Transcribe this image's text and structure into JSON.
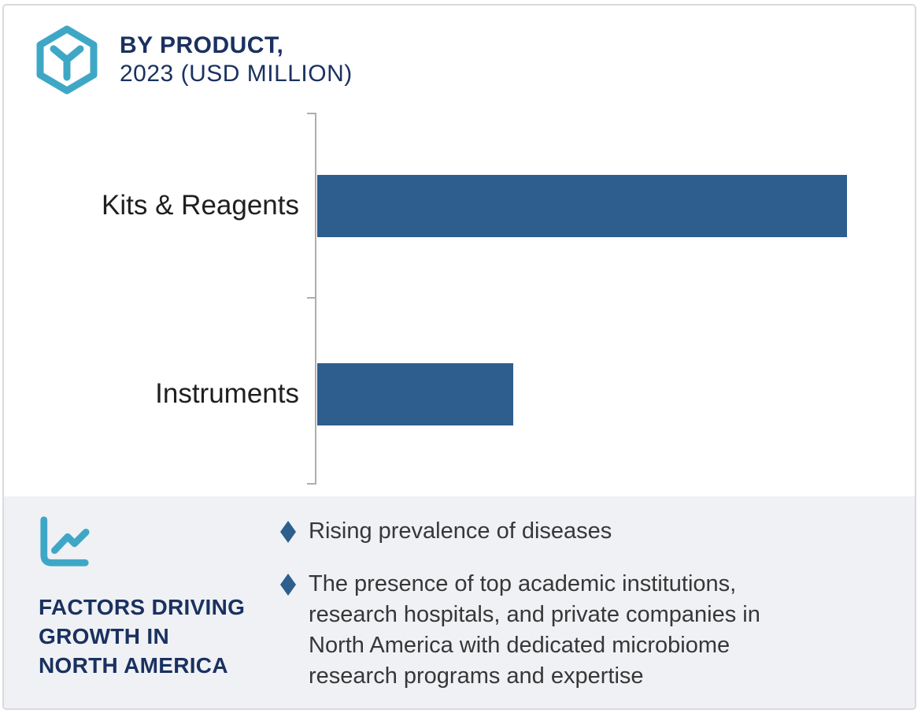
{
  "header": {
    "title_line1": "BY PRODUCT,",
    "title_line2": "2023 (USD MILLION)",
    "brand_icon": "hexagon-y-logo-icon"
  },
  "chart_data": {
    "type": "bar",
    "orientation": "horizontal",
    "title": "BY PRODUCT, 2023 (USD MILLION)",
    "categories": [
      "Kits & Reagents",
      "Instruments"
    ],
    "values_pct_of_max": [
      100,
      37
    ],
    "value_axis_labels_shown": false,
    "data_labels_shown": false,
    "grid": false,
    "legend": false,
    "bar_color": "#2d5e8d",
    "axis_color": "#aeaeae"
  },
  "factors": {
    "icon": "line-chart-icon",
    "heading": "FACTORS DRIVING\nGROWTH IN\nNORTH AMERICA",
    "bullets": [
      {
        "text": "Rising prevalence of diseases"
      },
      {
        "text": "The presence of top academic institutions,\nresearch hospitals, and private companies in\nNorth America with dedicated microbiome\nresearch programs and expertise"
      }
    ],
    "panel_background": "#eff1f4"
  },
  "colors": {
    "accent_teal": "#3fa7c6",
    "navy": "#1a3160",
    "bar_blue": "#2d5e8d",
    "panel_gray": "#eff1f4",
    "frame_border": "#d8dade"
  }
}
